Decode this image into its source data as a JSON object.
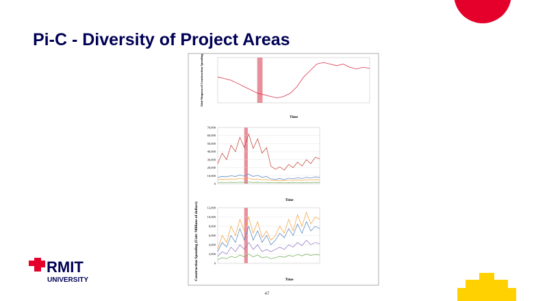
{
  "slide": {
    "title": "Pi-C - Diversity of Project Areas",
    "logo": {
      "name": "RMIT",
      "sub": "UNIVERSITY"
    },
    "page_number": "47"
  },
  "figure": {
    "shared_ylabel": "Construction Spending (Unit: Millions of dollars)",
    "panels": [
      {
        "type": "line",
        "ylabel": "Gini-Simpson of Construction Spending",
        "xlabel": "Time",
        "ylim": [
          0.78,
          0.92
        ],
        "series": [
          {
            "color": "#d9304a",
            "values": [
              0.86,
              0.855,
              0.85,
              0.84,
              0.83,
              0.82,
              0.81,
              0.805,
              0.8,
              0.795,
              0.8,
              0.81,
              0.83,
              0.86,
              0.88,
              0.9,
              0.905,
              0.9,
              0.895,
              0.9,
              0.89,
              0.885,
              0.89,
              0.887
            ]
          }
        ]
      },
      {
        "type": "line",
        "xlabel": "Time",
        "ylim": [
          0,
          70000
        ],
        "yticks": [
          0,
          {
            "value": 10000,
            "label": "10,000"
          },
          {
            "value": 20000,
            "label": "20,000"
          },
          {
            "value": 30000,
            "label": "30,000"
          },
          {
            "value": 40000,
            "label": "40,000"
          },
          {
            "value": 50000,
            "label": "50,000"
          },
          {
            "value": 60000,
            "label": "60,000"
          },
          {
            "value": 70000,
            "label": "70,000"
          }
        ],
        "series": [
          {
            "color": "#c0392b",
            "values": [
              25000,
              38000,
              30000,
              48000,
              40000,
              58000,
              45000,
              62000,
              44000,
              56000,
              38000,
              45000,
              22000,
              18000,
              21000,
              17000,
              24000,
              20000,
              27000,
              22000,
              30000,
              25000,
              33000,
              31000
            ]
          },
          {
            "color": "#4a7ebb",
            "values": [
              8000,
              9000,
              8500,
              10000,
              9000,
              11000,
              9500,
              12000,
              9000,
              10500,
              8000,
              9000,
              6000,
              5500,
              6500,
              5000,
              7000,
              6000,
              7500,
              6500,
              8000,
              7000,
              8500,
              8000
            ]
          },
          {
            "color": "#f39c34",
            "values": [
              5000,
              5500,
              5200,
              6000,
              5600,
              6500,
              5800,
              7000,
              5500,
              6000,
              5000,
              5500,
              4000,
              3800,
              4200,
              3600,
              4500,
              4000,
              4800,
              4200,
              5000,
              4500,
              5200,
              5000
            ]
          },
          {
            "color": "#6aa84f",
            "values": [
              1500,
              1600,
              1500,
              1800,
              1600,
              1900,
              1700,
              2000,
              1600,
              1800,
              1500,
              1600,
              1200,
              1100,
              1300,
              1000,
              1400,
              1200,
              1500,
              1300,
              1600,
              1400,
              1700,
              1600
            ]
          }
        ]
      },
      {
        "type": "line",
        "xlabel": "Time",
        "ylim": [
          0,
          12000
        ],
        "yticks": [
          0,
          {
            "value": 2000,
            "label": "2,000"
          },
          {
            "value": 4000,
            "label": "4,000"
          },
          {
            "value": 6000,
            "label": "6,000"
          },
          {
            "value": 8000,
            "label": "8,000"
          },
          {
            "value": 10000,
            "label": "10,000"
          },
          {
            "value": 12000,
            "label": "12,000"
          }
        ],
        "series": [
          {
            "color": "#f39c34",
            "values": [
              3000,
              6000,
              4500,
              8000,
              6000,
              9500,
              7000,
              10000,
              6500,
              9000,
              5500,
              7000,
              5000,
              6000,
              8000,
              6500,
              9500,
              7000,
              10500,
              8000,
              11000,
              8500,
              10000,
              9500
            ]
          },
          {
            "color": "#4a7ebb",
            "values": [
              2500,
              4500,
              3500,
              6000,
              4500,
              7500,
              5000,
              8000,
              5000,
              7000,
              4500,
              6000,
              4000,
              5000,
              6500,
              5500,
              7500,
              6000,
              8500,
              6500,
              9000,
              7000,
              8000,
              7500
            ]
          },
          {
            "color": "#8e6bbf",
            "values": [
              1500,
              2500,
              2000,
              3500,
              2500,
              4000,
              3000,
              4500,
              3000,
              4000,
              2500,
              3000,
              2500,
              3000,
              3500,
              3000,
              4000,
              3500,
              4500,
              3800,
              5000,
              4000,
              4500,
              4200
            ]
          },
          {
            "color": "#6aa84f",
            "values": [
              800,
              1200,
              1000,
              1500,
              1200,
              1800,
              1400,
              2000,
              1400,
              1800,
              1200,
              1400,
              1000,
              1200,
              1500,
              1300,
              1700,
              1500,
              1900,
              1600,
              2000,
              1700,
              1900,
              1800
            ]
          }
        ]
      }
    ]
  }
}
